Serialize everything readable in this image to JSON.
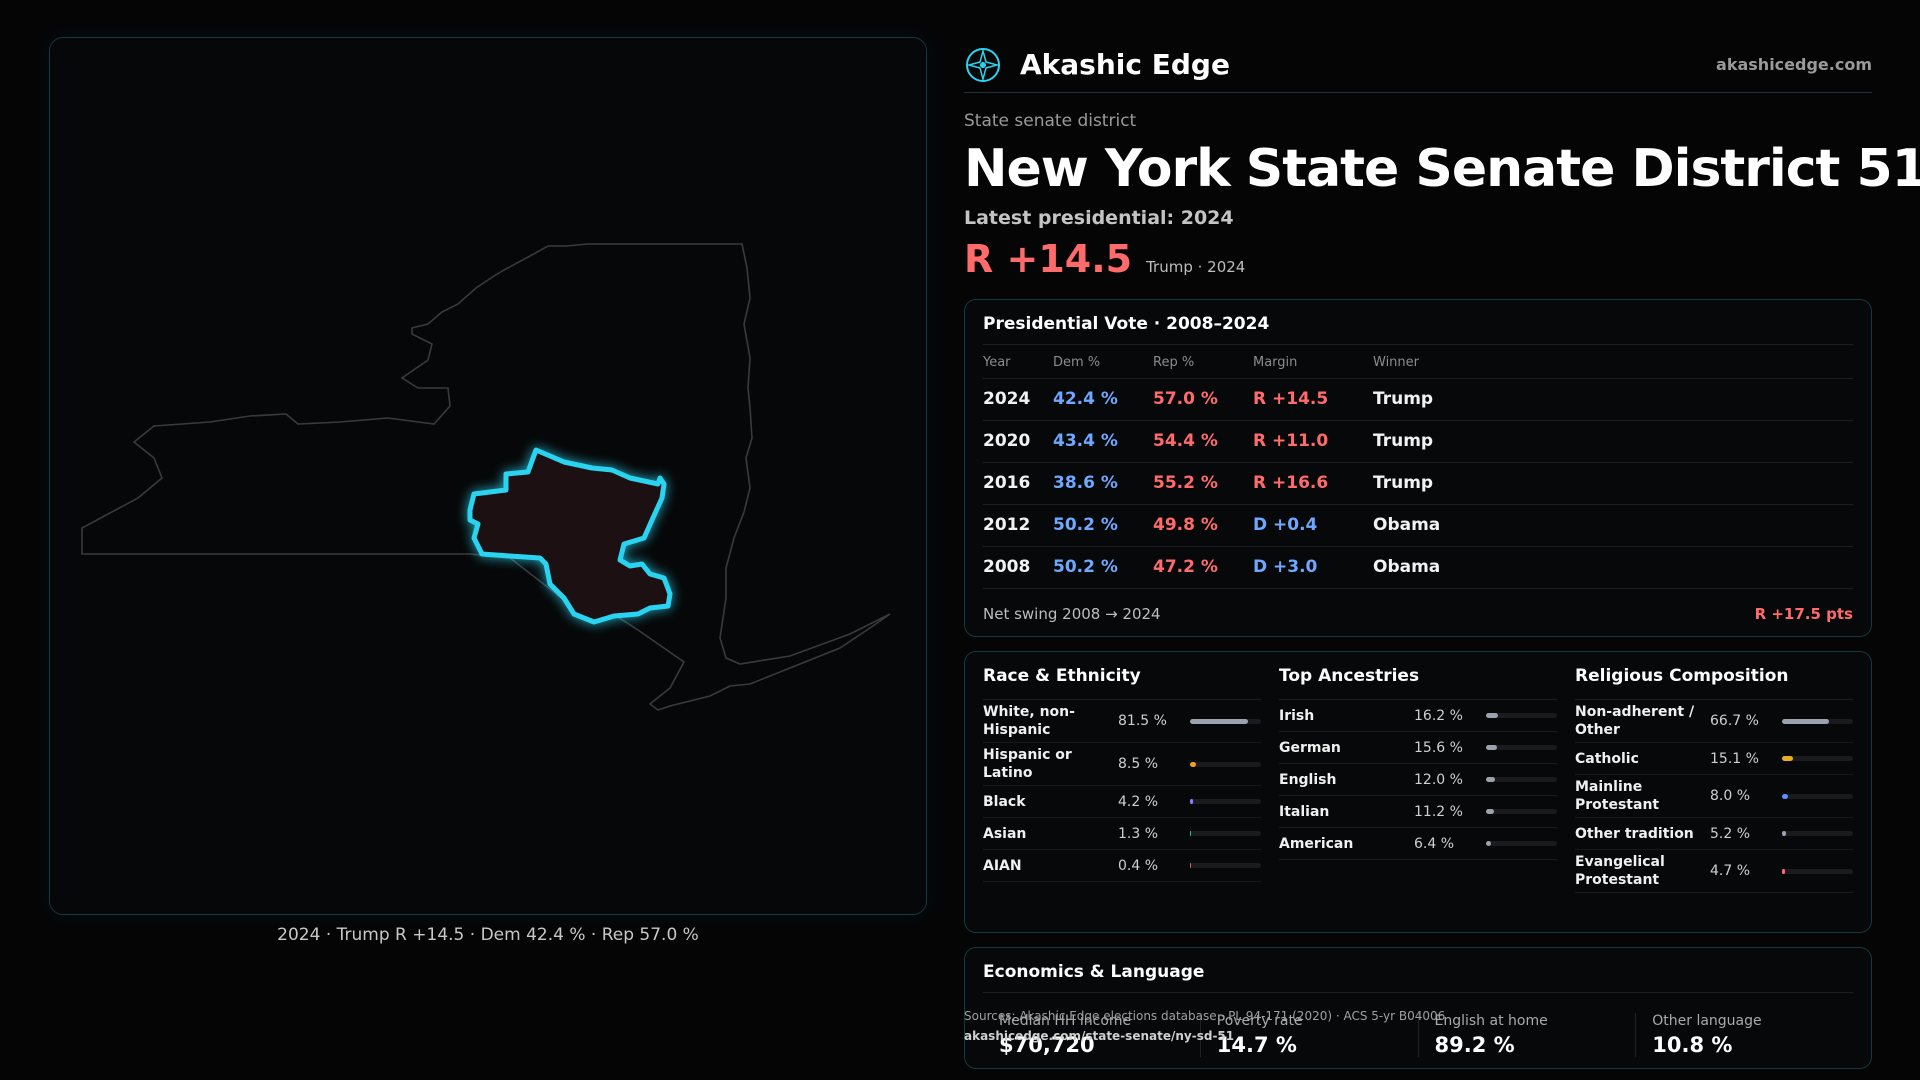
{
  "map": {
    "caption": "2024 · Trump R +14.5 · Dem 42.4 % · Rep 57.0 %"
  },
  "brand": {
    "name": "Akashic Edge",
    "url": "akashicedge.com",
    "logo_icon": "compass-star-icon"
  },
  "header": {
    "kicker": "State senate district",
    "title_state": "New York",
    "title_district": "State Senate District 51",
    "latest": "Latest presidential: 2024",
    "lean": "R +14.5",
    "lean_sub": "Trump · 2024"
  },
  "presidential": {
    "title": "Presidential Vote · 2008–2024",
    "columns": [
      "Year",
      "Dem %",
      "Rep %",
      "Margin",
      "Winner"
    ],
    "rows": [
      {
        "year": "2024",
        "dem": "42.4 %",
        "rep": "57.0 %",
        "margin": "R +14.5",
        "party": "R",
        "winner": "Trump"
      },
      {
        "year": "2020",
        "dem": "43.4 %",
        "rep": "54.4 %",
        "margin": "R +11.0",
        "party": "R",
        "winner": "Trump"
      },
      {
        "year": "2016",
        "dem": "38.6 %",
        "rep": "55.2 %",
        "margin": "R +16.6",
        "party": "R",
        "winner": "Trump"
      },
      {
        "year": "2012",
        "dem": "50.2 %",
        "rep": "49.8 %",
        "margin": "D +0.4",
        "party": "D",
        "winner": "Obama"
      },
      {
        "year": "2008",
        "dem": "50.2 %",
        "rep": "47.2 %",
        "margin": "D +3.0",
        "party": "D",
        "winner": "Obama"
      }
    ],
    "swing_label": "Net swing 2008 → 2024",
    "swing_value": "R +17.5 pts"
  },
  "race": {
    "title": "Race & Ethnicity",
    "items": [
      {
        "label": "White, non-Hispanic",
        "pct": "81.5 %",
        "value": 81.5,
        "color": "#9aa3ad"
      },
      {
        "label": "Hispanic or Latino",
        "pct": "8.5 %",
        "value": 8.5,
        "color": "#f0a020"
      },
      {
        "label": "Black",
        "pct": "4.2 %",
        "value": 4.2,
        "color": "#8a7cff"
      },
      {
        "label": "Asian",
        "pct": "1.3 %",
        "value": 1.3,
        "color": "#2fbf8f"
      },
      {
        "label": "AIAN",
        "pct": "0.4 %",
        "value": 0.4,
        "color": "#e0603a"
      }
    ]
  },
  "ancestry": {
    "title": "Top Ancestries",
    "items": [
      {
        "label": "Irish",
        "pct": "16.2 %",
        "value": 16.2,
        "color": "#9aa3ad"
      },
      {
        "label": "German",
        "pct": "15.6 %",
        "value": 15.6,
        "color": "#9aa3ad"
      },
      {
        "label": "English",
        "pct": "12.0 %",
        "value": 12.0,
        "color": "#9aa3ad"
      },
      {
        "label": "Italian",
        "pct": "11.2 %",
        "value": 11.2,
        "color": "#9aa3ad"
      },
      {
        "label": "American",
        "pct": "6.4 %",
        "value": 6.4,
        "color": "#9aa3ad"
      }
    ]
  },
  "religion": {
    "title": "Religious Composition",
    "items": [
      {
        "label": "Non-adherent / Other",
        "pct": "66.7 %",
        "value": 66.7,
        "color": "#9aa3ad"
      },
      {
        "label": "Catholic",
        "pct": "15.1 %",
        "value": 15.1,
        "color": "#e8b020"
      },
      {
        "label": "Mainline Protestant",
        "pct": "8.0 %",
        "value": 8.0,
        "color": "#5f8cff"
      },
      {
        "label": "Other tradition",
        "pct": "5.2 %",
        "value": 5.2,
        "color": "#9aa3ad"
      },
      {
        "label": "Evangelical Protestant",
        "pct": "4.7 %",
        "value": 4.7,
        "color": "#ff6b6b"
      }
    ]
  },
  "economics": {
    "title": "Economics & Language",
    "items": [
      {
        "label": "Median HH income",
        "value": "$70,720"
      },
      {
        "label": "Poverty rate",
        "value": "14.7 %"
      },
      {
        "label": "English at home",
        "value": "89.2 %"
      },
      {
        "label": "Other language",
        "value": "10.8 %"
      }
    ]
  },
  "sources": {
    "text": "Sources: Akashic Edge elections database · PL 94-171 (2020) · ACS 5-yr B04006",
    "url": "akashicedge.com/state-senate/ny-sd-51"
  }
}
